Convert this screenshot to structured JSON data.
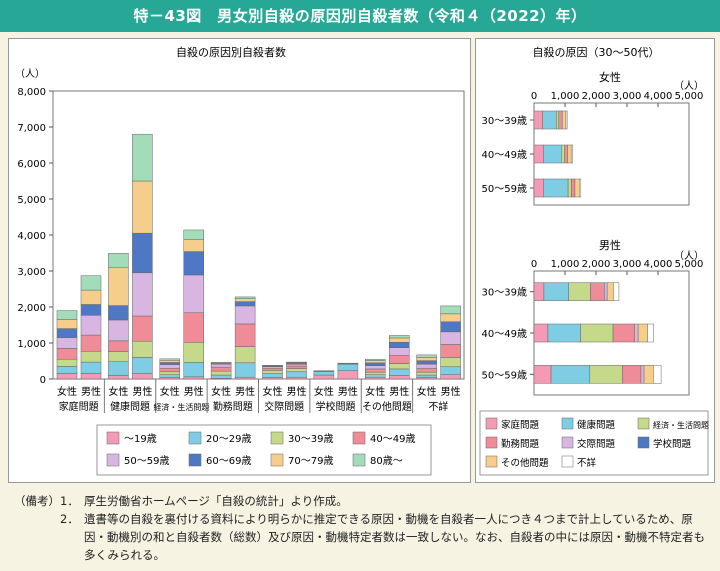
{
  "title": "特－43図　男女別自殺の原因別自殺者数（令和４（2022）年）",
  "notes": {
    "label": "（備考）",
    "items": [
      {
        "num": "1．",
        "text": "厚生労働省ホームページ「自殺の統計」より作成。"
      },
      {
        "num": "2．",
        "text": "遺書等の自殺を裏付ける資料により明らかに推定できる原因・動機を自殺者一人につき４つまで計上しているため、原因・動機別の和と自殺者数（総数）及び原因・動機特定者数は一致しない。なお、自殺者の中には原因・動機不特定者も多くみられる。"
      }
    ]
  },
  "colors": {
    "age": [
      "#f49ab5",
      "#7fcde4",
      "#c5d98a",
      "#ef8c97",
      "#d9b6e2",
      "#4e78c4",
      "#f6ce8c",
      "#a3dcb9"
    ],
    "cause": [
      "#f49ab5",
      "#7fcde4",
      "#c5d98a",
      "#ef8c97",
      "#d9b6e2",
      "#4e78c4",
      "#f6ce8c",
      "#ffffff"
    ]
  },
  "chart_data": [
    {
      "type": "bar",
      "stacked": true,
      "title": "自殺の原因別自殺者数",
      "unit": "（人）",
      "ylim": [
        0,
        8000
      ],
      "yticks": [
        "0",
        "1,000",
        "2,000",
        "3,000",
        "4,000",
        "5,000",
        "6,000",
        "7,000",
        "8,000"
      ],
      "sex_labels": [
        "女性",
        "男性"
      ],
      "groups": [
        "家庭問題",
        "健康問題",
        "経済・生活問題",
        "勤務問題",
        "交際問題",
        "学校問題",
        "その他問題",
        "不詳"
      ],
      "series_names": [
        "～19歳",
        "20～29歳",
        "30～39歳",
        "40～49歳",
        "50～59歳",
        "60～69歳",
        "70～79歳",
        "80歳～"
      ],
      "values": [
        [
          150,
          200,
          200,
          300,
          300,
          250,
          250,
          250
        ],
        [
          150,
          320,
          300,
          450,
          550,
          300,
          400,
          400
        ],
        [
          100,
          380,
          280,
          300,
          580,
          400,
          1050,
          400
        ],
        [
          150,
          450,
          450,
          700,
          1200,
          1100,
          1450,
          1300
        ],
        [
          40,
          80,
          80,
          100,
          100,
          60,
          60,
          40
        ],
        [
          60,
          400,
          560,
          820,
          1050,
          650,
          330,
          270
        ],
        [
          20,
          90,
          110,
          110,
          80,
          20,
          20,
          10
        ],
        [
          50,
          400,
          450,
          630,
          500,
          120,
          80,
          50
        ],
        [
          40,
          120,
          80,
          60,
          40,
          20,
          10,
          10
        ],
        [
          50,
          150,
          90,
          70,
          50,
          30,
          20,
          10
        ],
        [
          110,
          100,
          10,
          10,
          0,
          0,
          0,
          0
        ],
        [
          230,
          180,
          20,
          10,
          0,
          0,
          0,
          0
        ],
        [
          50,
          70,
          70,
          90,
          90,
          80,
          60,
          40
        ],
        [
          100,
          180,
          150,
          220,
          220,
          150,
          120,
          70
        ],
        [
          40,
          70,
          80,
          110,
          110,
          100,
          90,
          70
        ],
        [
          120,
          220,
          260,
          360,
          350,
          280,
          220,
          220
        ]
      ]
    },
    {
      "type": "bar",
      "orientation": "horizontal",
      "stacked": true,
      "title": "自殺の原因（30～50代）",
      "unit": "（人）",
      "xlim": [
        0,
        5000
      ],
      "xticks": [
        "0",
        "1,000",
        "2,000",
        "3,000",
        "4,000",
        "5,000"
      ],
      "legend": [
        "家庭問題",
        "健康問題",
        "経済・生活問題",
        "勤務問題",
        "交際問題",
        "学校問題",
        "その他問題",
        "不詳"
      ],
      "panels": [
        {
          "name": "女性",
          "categories": [
            "30～39歳",
            "40～49歳",
            "50～59歳"
          ],
          "values": [
            [
              280,
              440,
              80,
              110,
              0,
              0,
              120,
              40
            ],
            [
              300,
              580,
              110,
              100,
              0,
              0,
              110,
              50
            ],
            [
              300,
              800,
              110,
              110,
              0,
              0,
              140,
              50
            ]
          ]
        },
        {
          "name": "男性",
          "categories": [
            "30～39歳",
            "40～49歳",
            "50～59歳"
          ],
          "values": [
            [
              320,
              800,
              700,
              450,
              90,
              0,
              200,
              180
            ],
            [
              450,
              1050,
              1050,
              700,
              110,
              0,
              300,
              200
            ],
            [
              550,
              1250,
              1050,
              600,
              100,
              0,
              300,
              250
            ]
          ]
        }
      ]
    }
  ]
}
